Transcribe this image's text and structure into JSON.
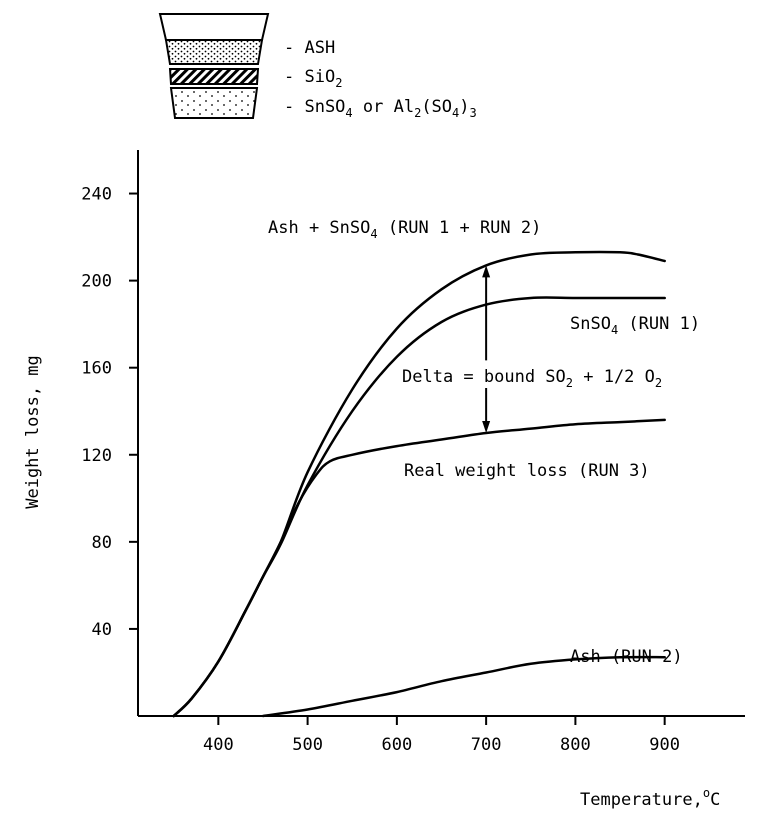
{
  "chart_data": {
    "type": "line",
    "xlabel": "Temperature,",
    "xlabel_unit_sup": "o",
    "xlabel_unit": "C",
    "ylabel": "Weight loss, mg",
    "xlim": [
      310,
      990
    ],
    "ylim": [
      0,
      260
    ],
    "x_ticks": [
      400,
      500,
      600,
      700,
      800,
      900
    ],
    "y_ticks": [
      40,
      80,
      120,
      160,
      200,
      240
    ],
    "grid": false,
    "series": [
      {
        "name": "Ash + SnSO4 (RUN 1 + RUN 2)",
        "color": "#000000",
        "x": [
          350,
          370,
          400,
          430,
          450,
          470,
          500,
          550,
          600,
          650,
          700,
          750,
          800,
          850,
          870,
          900
        ],
        "y": [
          0,
          8,
          25,
          48,
          64,
          80,
          112,
          150,
          178,
          196,
          207,
          212,
          213,
          213,
          212,
          209
        ]
      },
      {
        "name": "SnSO4 (RUN 1)",
        "color": "#000000",
        "x": [
          350,
          370,
          400,
          430,
          450,
          470,
          500,
          550,
          600,
          650,
          700,
          750,
          800,
          850,
          900
        ],
        "y": [
          0,
          8,
          25,
          48,
          64,
          79,
          106,
          140,
          165,
          181,
          189,
          192,
          192,
          192,
          192
        ]
      },
      {
        "name": "Real weight loss (RUN 3)",
        "color": "#000000",
        "x": [
          350,
          370,
          400,
          430,
          450,
          470,
          490,
          510,
          525,
          550,
          600,
          650,
          700,
          750,
          800,
          850,
          900
        ],
        "y": [
          0,
          8,
          25,
          48,
          64,
          80,
          98,
          111,
          117,
          120,
          124,
          127,
          130,
          132,
          134,
          135,
          136
        ]
      },
      {
        "name": "Ash (RUN 2)",
        "color": "#000000",
        "x": [
          450,
          500,
          550,
          600,
          650,
          700,
          750,
          800,
          850,
          900
        ],
        "y": [
          0,
          3,
          7,
          11,
          16,
          20,
          24,
          26,
          27,
          27
        ]
      }
    ],
    "annotations": {
      "ash_snso4_label": {
        "base": "Ash + SnSO",
        "sub": "4",
        "tail": " (RUN 1 + RUN 2)"
      },
      "snso4_label": {
        "base": "SnSO",
        "sub": "4",
        "tail": " (RUN 1)"
      },
      "delta_label": {
        "base": "Delta = bound SO",
        "sub": "2",
        "tail": " + 1/2 O",
        "sub2": "2"
      },
      "real_label": "Real weight loss (RUN 3)",
      "ash_label": "Ash (RUN 2)",
      "delta_arrow": {
        "x": 700,
        "y_top": 207,
        "y_bottom": 130
      }
    },
    "legend": {
      "placement": "top-left",
      "items": [
        {
          "label": "- ASH",
          "pattern": "dots"
        },
        {
          "label": "- SiO",
          "sub": "2",
          "pattern": "hatch"
        },
        {
          "label": "- SnSO",
          "sub": "4",
          "tail": " or Al",
          "sub2": "2",
          "tail2": "(SO",
          "sub3": "4",
          "tail3": ")",
          "sub4": "3",
          "pattern": "sparse-dots"
        }
      ]
    }
  }
}
